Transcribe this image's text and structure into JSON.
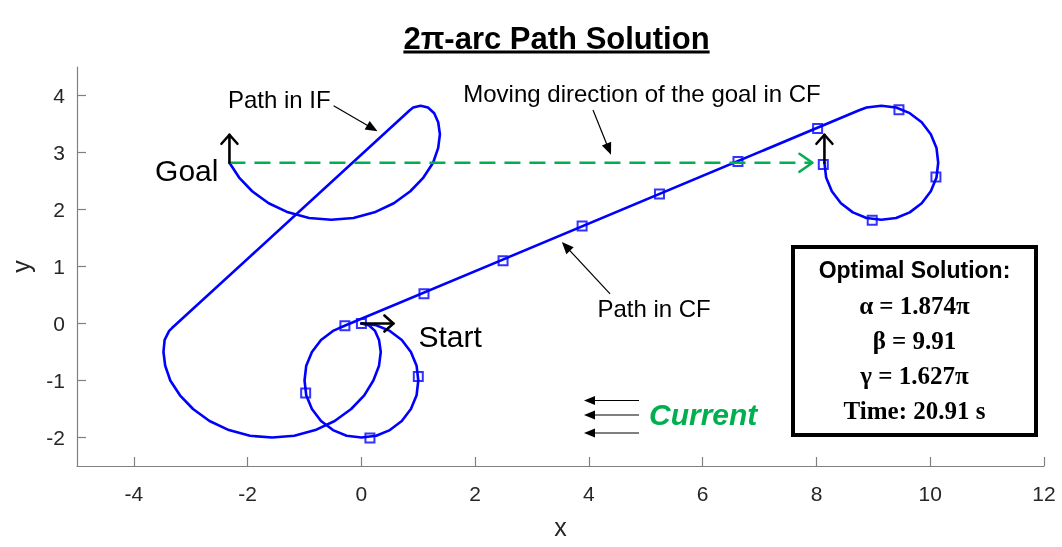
{
  "chart_data": {
    "type": "line",
    "title": "2π-arc Path Solution",
    "xlabel": "x",
    "ylabel": "y",
    "xlim": [
      -5,
      12
    ],
    "xticks": [
      -4,
      -2,
      0,
      2,
      4,
      6,
      8,
      10,
      12
    ],
    "ylim": [
      -2.5,
      4.5
    ],
    "yticks": [
      -2,
      -1,
      0,
      1,
      2,
      3,
      4
    ],
    "series": [
      {
        "color": "#0000ff",
        "marker": "none",
        "line_style": "solid",
        "x": [
          0,
          0.13,
          0.24,
          0.31,
          0.34,
          0.31,
          0.21,
          0.05,
          -0.18,
          -0.47,
          -0.81,
          -1.18,
          -1.57,
          -1.96,
          -2.33,
          -2.67,
          -2.96,
          -3.19,
          -3.36,
          -3.45,
          -3.48,
          -3.46,
          -3.38,
          -3.33,
          0.85,
          0.91,
          1.04,
          1.17,
          1.28,
          1.35,
          1.38,
          1.35,
          1.26,
          1.09,
          0.86,
          0.57,
          0.23,
          -0.14,
          -0.53,
          -0.92,
          -1.29,
          -1.63,
          -1.92,
          -2.15,
          -2.32
        ],
        "values": [
          0,
          -0.03,
          -0.13,
          -0.29,
          -0.5,
          -0.74,
          -1,
          -1.26,
          -1.5,
          -1.71,
          -1.87,
          -1.97,
          -2,
          -1.97,
          -1.87,
          -1.71,
          -1.5,
          -1.26,
          -1,
          -0.74,
          -0.5,
          -0.29,
          -0.13,
          -0.08,
          3.74,
          3.79,
          3.82,
          3.79,
          3.69,
          3.53,
          3.32,
          3.08,
          2.82,
          2.56,
          2.32,
          2.11,
          1.95,
          1.85,
          1.82,
          1.85,
          1.95,
          2.11,
          2.32,
          2.56,
          2.82
        ]
      },
      {
        "color": "#0000ff",
        "marker": "none",
        "line_style": "solid",
        "x": [
          0,
          0.26,
          0.5,
          0.71,
          0.87,
          0.97,
          1,
          0.97,
          0.87,
          0.71,
          0.5,
          0.26,
          0,
          -0.26,
          -0.5,
          -0.71,
          -0.87,
          -0.97,
          -1,
          -0.97,
          -0.87,
          -0.71,
          -0.5,
          -0.39,
          8.75,
          8.88,
          9.14,
          9.4,
          9.64,
          9.85,
          10.01,
          10.11,
          10.14,
          10.11,
          10.01,
          9.85,
          9.64,
          9.4,
          9.14,
          8.88,
          8.64,
          8.43,
          8.27,
          8.17,
          8.14
        ],
        "values": [
          0,
          -0.03,
          -0.13,
          -0.29,
          -0.5,
          -0.74,
          -1,
          -1.26,
          -1.5,
          -1.71,
          -1.87,
          -1.97,
          -2,
          -1.97,
          -1.87,
          -1.71,
          -1.5,
          -1.26,
          -1,
          -0.74,
          -0.5,
          -0.29,
          -0.13,
          -0.08,
          3.74,
          3.79,
          3.82,
          3.79,
          3.69,
          3.53,
          3.32,
          3.08,
          2.82,
          2.56,
          2.32,
          2.11,
          1.95,
          1.85,
          1.82,
          1.85,
          1.95,
          2.11,
          2.32,
          2.56,
          2.82
        ]
      },
      {
        "type": "scatter",
        "color": "#0000ff",
        "marker": "square",
        "x": [
          0,
          1.0,
          0.15,
          -0.98,
          -0.29,
          1.1,
          2.49,
          3.88,
          5.24,
          6.62,
          8.02,
          9.45,
          10.1,
          8.98,
          8.12
        ],
        "values": [
          0,
          -0.93,
          -2.01,
          -1.22,
          -0.04,
          0.52,
          1.1,
          1.71,
          2.27,
          2.84,
          3.42,
          3.75,
          2.57,
          1.81,
          2.79
        ]
      }
    ],
    "annotations": [
      {
        "text": "Path in IF",
        "x": 0.39,
        "y": 3.31
      },
      "Moving direction of the goal in CF",
      {
        "text": "Path in CF",
        "x": 3.44,
        "y": 1.52
      },
      {
        "text": "Start",
        "x": 0,
        "y": 0
      },
      {
        "text": "Goal",
        "x": -2.32,
        "y": 2.82
      },
      "Current",
      "Optimal Solution:\nα = 1.874π\nβ = 9.91\nγ = 1.627π\nTime: 20.91 s"
    ]
  }
}
